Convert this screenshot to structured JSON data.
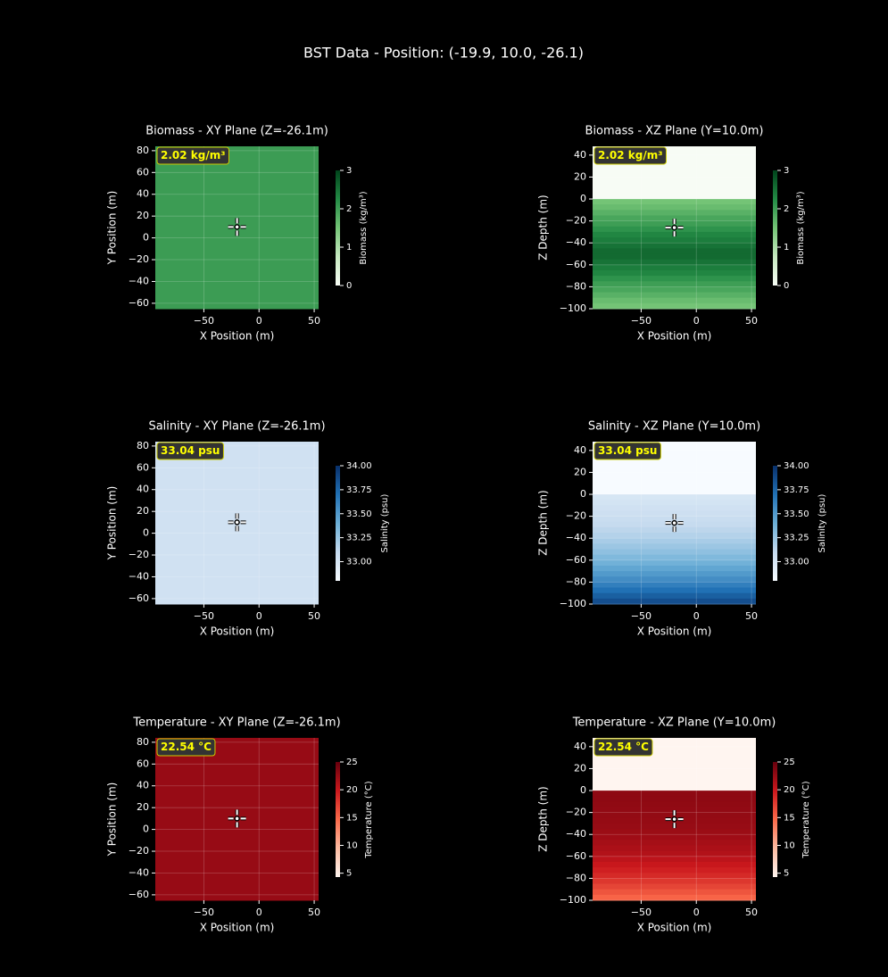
{
  "title": "BST Data - Position: (-19.9, 10.0, -26.1)",
  "chart_data": [
    {
      "type": "heatmap",
      "title": "Biomass - XY Plane (Z=-26.1m)",
      "xlabel": "X Position (m)",
      "ylabel": "Y Position (m)",
      "xlim": [
        -94,
        54
      ],
      "ylim": [
        -65,
        84
      ],
      "xticks": [
        {
          "value": -50,
          "label": "−50"
        },
        0,
        50
      ],
      "yticks": [
        {
          "value": -60,
          "label": "−60"
        },
        {
          "value": -40,
          "label": "−40"
        },
        {
          "value": -20,
          "label": "−20"
        },
        0,
        20,
        40,
        60,
        80
      ],
      "y_edges": [
        84,
        -65
      ],
      "values": [
        2.02
      ],
      "cmap": [
        "#f7fcf5",
        "#c7e9c0",
        "#74c476",
        "#238b45",
        "#00441b"
      ],
      "clim": [
        0,
        3
      ],
      "cticks": [
        0,
        1,
        2,
        3
      ],
      "colorbar_label": "Biomass (kg/m³)",
      "annotation": "2.02 kg/m³",
      "marker": {
        "x": -19.9,
        "y": 10.0
      },
      "grid": true
    },
    {
      "type": "heatmap",
      "title": "Biomass - XZ Plane (Y=10.0m)",
      "xlabel": "X Position (m)",
      "ylabel": "Z Depth (m)",
      "xlim": [
        -94,
        54
      ],
      "ylim": [
        -100,
        48
      ],
      "xticks": [
        {
          "value": -50,
          "label": "−50"
        },
        0,
        50
      ],
      "yticks": [
        {
          "value": -100,
          "label": "−100"
        },
        {
          "value": -80,
          "label": "−80"
        },
        {
          "value": -60,
          "label": "−60"
        },
        {
          "value": -40,
          "label": "−40"
        },
        {
          "value": -20,
          "label": "−20"
        },
        0,
        20,
        40
      ],
      "y_edges": [
        48,
        0,
        -5,
        -10,
        -15,
        -20,
        -25,
        -30,
        -35,
        -40,
        -45,
        -50,
        -55,
        -60,
        -65,
        -70,
        -75,
        -80,
        -85,
        -90,
        -95,
        -100
      ],
      "values": [
        0,
        1.5,
        1.6,
        1.75,
        1.9,
        2.0,
        2.15,
        2.3,
        2.4,
        2.5,
        2.6,
        2.6,
        2.5,
        2.4,
        2.3,
        2.15,
        2.0,
        1.9,
        1.75,
        1.6,
        1.5
      ],
      "cmap": [
        "#f7fcf5",
        "#c7e9c0",
        "#74c476",
        "#238b45",
        "#00441b"
      ],
      "clim": [
        0,
        3
      ],
      "cticks": [
        0,
        1,
        2,
        3
      ],
      "colorbar_label": "Biomass (kg/m³)",
      "annotation": "2.02 kg/m³",
      "marker": {
        "x": -19.9,
        "y": -26.1
      },
      "grid": true
    },
    {
      "type": "heatmap",
      "title": "Salinity - XY Plane (Z=-26.1m)",
      "xlabel": "X Position (m)",
      "ylabel": "Y Position (m)",
      "xlim": [
        -94,
        54
      ],
      "ylim": [
        -65,
        84
      ],
      "xticks": [
        {
          "value": -50,
          "label": "−50"
        },
        0,
        50
      ],
      "yticks": [
        {
          "value": -60,
          "label": "−60"
        },
        {
          "value": -40,
          "label": "−40"
        },
        {
          "value": -20,
          "label": "−20"
        },
        0,
        20,
        40,
        60,
        80
      ],
      "y_edges": [
        84,
        -65
      ],
      "values": [
        33.04
      ],
      "cmap": [
        "#f7fbff",
        "#c6dbef",
        "#6baed6",
        "#2171b5",
        "#08306b"
      ],
      "clim": [
        32.8,
        34.0
      ],
      "cticks": [
        {
          "value": 33,
          "label": "33.00"
        },
        {
          "value": 33.25,
          "label": "33.25"
        },
        {
          "value": 33.5,
          "label": "33.50"
        },
        {
          "value": 33.75,
          "label": "33.75"
        },
        {
          "value": 34,
          "label": "34.00"
        }
      ],
      "colorbar_label": "Salinity (psu)",
      "annotation": "33.04 psu",
      "marker": {
        "x": -19.9,
        "y": 10.0
      },
      "grid": true
    },
    {
      "type": "heatmap",
      "title": "Salinity - XZ Plane (Y=10.0m)",
      "xlabel": "X Position (m)",
      "ylabel": "Z Depth (m)",
      "xlim": [
        -94,
        54
      ],
      "ylim": [
        -100,
        48
      ],
      "xticks": [
        {
          "value": -50,
          "label": "−50"
        },
        0,
        50
      ],
      "yticks": [
        {
          "value": -100,
          "label": "−100"
        },
        {
          "value": -80,
          "label": "−80"
        },
        {
          "value": -60,
          "label": "−60"
        },
        {
          "value": -40,
          "label": "−40"
        },
        {
          "value": -20,
          "label": "−20"
        },
        0,
        20,
        40
      ],
      "y_edges": [
        48,
        0,
        -5,
        -10,
        -15,
        -20,
        -25,
        -30,
        -35,
        -40,
        -45,
        -50,
        -55,
        -60,
        -65,
        -70,
        -75,
        -80,
        -85,
        -90,
        -95,
        -100
      ],
      "values": [
        32.8,
        33.0,
        33.02,
        33.04,
        33.06,
        33.08,
        33.1,
        33.13,
        33.16,
        33.2,
        33.24,
        33.28,
        33.33,
        33.38,
        33.44,
        33.5,
        33.56,
        33.63,
        33.7,
        33.78,
        33.86
      ],
      "cmap": [
        "#f7fbff",
        "#c6dbef",
        "#6baed6",
        "#2171b5",
        "#08306b"
      ],
      "clim": [
        32.8,
        34.0
      ],
      "cticks": [
        {
          "value": 33,
          "label": "33.00"
        },
        {
          "value": 33.25,
          "label": "33.25"
        },
        {
          "value": 33.5,
          "label": "33.50"
        },
        {
          "value": 33.75,
          "label": "33.75"
        },
        {
          "value": 34,
          "label": "34.00"
        }
      ],
      "colorbar_label": "Salinity (psu)",
      "annotation": "33.04 psu",
      "marker": {
        "x": -19.9,
        "y": -26.1
      },
      "grid": true
    },
    {
      "type": "heatmap",
      "title": "Temperature - XY Plane (Z=-26.1m)",
      "xlabel": "X Position (m)",
      "ylabel": "Y Position (m)",
      "xlim": [
        -94,
        54
      ],
      "ylim": [
        -65,
        84
      ],
      "xticks": [
        {
          "value": -50,
          "label": "−50"
        },
        0,
        50
      ],
      "yticks": [
        {
          "value": -60,
          "label": "−60"
        },
        {
          "value": -40,
          "label": "−40"
        },
        {
          "value": -20,
          "label": "−20"
        },
        0,
        20,
        40,
        60,
        80
      ],
      "y_edges": [
        84,
        -65
      ],
      "values": [
        22.54
      ],
      "cmap": [
        "#fff5f0",
        "#fcbba1",
        "#fb6a4a",
        "#cb181d",
        "#67000d"
      ],
      "clim": [
        4.3,
        25
      ],
      "cticks": [
        5,
        10,
        15,
        20,
        25
      ],
      "colorbar_label": "Temperature (°C)",
      "annotation": "22.54 °C",
      "marker": {
        "x": -19.9,
        "y": 10.0
      },
      "grid": true
    },
    {
      "type": "heatmap",
      "title": "Temperature - XZ Plane (Y=10.0m)",
      "xlabel": "X Position (m)",
      "ylabel": "Z Depth (m)",
      "xlim": [
        -94,
        54
      ],
      "ylim": [
        -100,
        48
      ],
      "xticks": [
        {
          "value": -50,
          "label": "−50"
        },
        0,
        50
      ],
      "yticks": [
        {
          "value": -100,
          "label": "−100"
        },
        {
          "value": -80,
          "label": "−80"
        },
        {
          "value": -60,
          "label": "−60"
        },
        {
          "value": -40,
          "label": "−40"
        },
        {
          "value": -20,
          "label": "−20"
        },
        0,
        20,
        40
      ],
      "y_edges": [
        48,
        0,
        -5,
        -10,
        -15,
        -20,
        -25,
        -30,
        -35,
        -40,
        -45,
        -50,
        -55,
        -60,
        -65,
        -70,
        -75,
        -80,
        -85,
        -90,
        -95,
        -100
      ],
      "values": [
        4.3,
        23,
        23,
        22.9,
        22.8,
        22.7,
        22.6,
        22.5,
        22.3,
        22.1,
        21.8,
        21.5,
        21.1,
        20.6,
        20,
        19.4,
        18.7,
        17.9,
        17,
        16,
        15
      ],
      "cmap": [
        "#fff5f0",
        "#fcbba1",
        "#fb6a4a",
        "#cb181d",
        "#67000d"
      ],
      "clim": [
        4.3,
        25
      ],
      "cticks": [
        5,
        10,
        15,
        20,
        25
      ],
      "colorbar_label": "Temperature (°C)",
      "annotation": "22.54 °C",
      "marker": {
        "x": -19.9,
        "y": -26.1
      },
      "grid": true
    }
  ]
}
